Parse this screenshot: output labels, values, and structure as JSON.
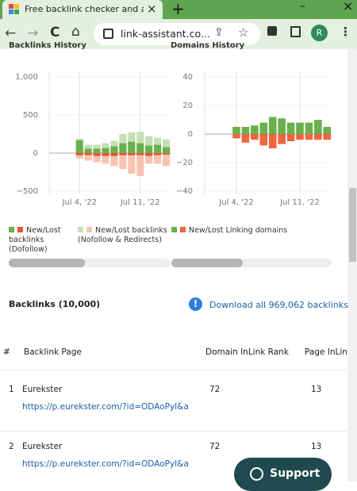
{
  "browser": {
    "tab_title": "Free backlink checker and ana",
    "url": "link-assistant.co...",
    "profile": "R"
  },
  "charts": [
    {
      "type": "bar",
      "title": "Backlinks History",
      "categories": [
        null,
        null,
        null,
        "Jul 4, '22",
        null,
        null,
        null,
        null,
        null,
        null,
        "Jul 11, '22",
        null,
        null,
        null
      ],
      "ylim": [
        -500,
        1000
      ],
      "yticks": [
        {
          "value": -500,
          "label": "−500"
        },
        0,
        500,
        {
          "value": 1000,
          "label": "1,000"
        }
      ],
      "series": [
        {
          "name": "New/Lost backlinks (Dofollow)",
          "new_color": "#6ab04c",
          "lost_color": "#e8553a",
          "new": [
            0,
            0,
            0,
            170,
            60,
            60,
            70,
            90,
            130,
            150,
            130,
            100,
            110,
            80
          ],
          "lost": [
            0,
            0,
            0,
            -30,
            -30,
            -40,
            -40,
            -40,
            -30,
            -30,
            -30,
            -40,
            -30,
            -20
          ]
        },
        {
          "name": "New/Lost backlinks (Nofollow & Redirects)",
          "new_color": "#c5e0b4",
          "lost_color": "#f8c4b0",
          "new": [
            0,
            0,
            0,
            20,
            50,
            50,
            60,
            70,
            120,
            120,
            150,
            120,
            90,
            100
          ],
          "lost": [
            0,
            0,
            0,
            -40,
            -70,
            -80,
            -100,
            -130,
            -180,
            -240,
            -270,
            -100,
            -110,
            -150
          ]
        }
      ]
    },
    {
      "type": "bar",
      "title": "Domains History",
      "categories": [
        null,
        null,
        null,
        "Jul 4, '22",
        null,
        null,
        null,
        null,
        null,
        null,
        "Jul 11, '22",
        null,
        null,
        null
      ],
      "ylim": [
        -40,
        40
      ],
      "yticks": [
        {
          "value": -40,
          "label": "−40"
        },
        {
          "value": -20,
          "label": "−20"
        },
        0,
        20,
        40
      ],
      "series": [
        {
          "name": "New/Lost Linking domains",
          "new_color": "#6ab04c",
          "lost_color": "#f0653f",
          "new": [
            0,
            0,
            0,
            5,
            5,
            6,
            8,
            12,
            11,
            8,
            8,
            8,
            10,
            5
          ],
          "lost": [
            0,
            0,
            0,
            -3,
            -6,
            -4,
            -8,
            -10,
            -7,
            -5,
            -4,
            -4,
            -4,
            -4
          ]
        }
      ]
    }
  ],
  "backlinks": {
    "heading": "Backlinks (10,000)",
    "download": "Download all 969,062 backlinks"
  },
  "table": {
    "columns": [
      "#",
      "Backlink Page",
      "Domain InLink Rank",
      "Page InLin"
    ],
    "rows": [
      {
        "index": 1,
        "name": "Eurekster",
        "url": "https://p.eurekster.com/?id=ODAoPyI&a...",
        "domain_rank": 72,
        "page_rank": 13
      },
      {
        "index": 2,
        "name": "Eurekster",
        "url": "https://p.eurekster.com/?id=ODAoPyI&a...",
        "domain_rank": 72,
        "page_rank": 13
      }
    ]
  },
  "support": "Support"
}
